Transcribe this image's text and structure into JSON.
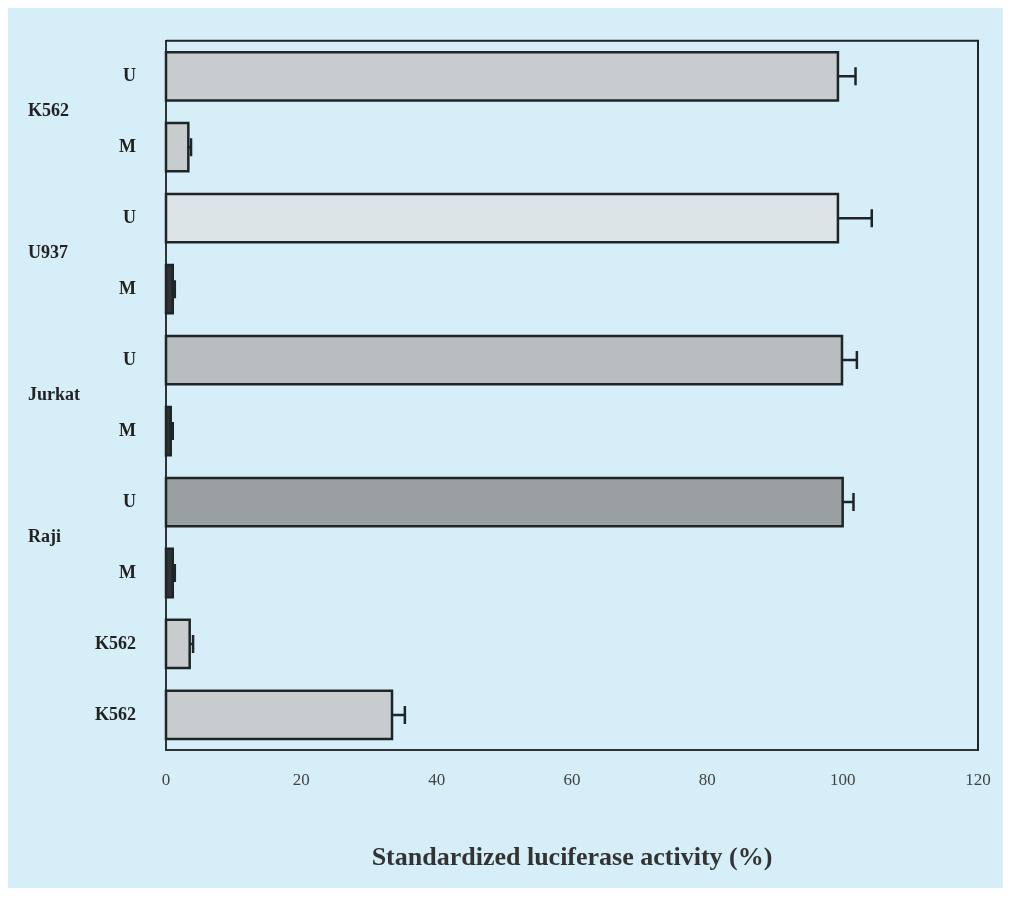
{
  "chart_data": {
    "type": "bar",
    "orientation": "horizontal",
    "xlabel": "Standardized luciferase activity (%)",
    "categories": [
      "U",
      "M",
      "U",
      "M",
      "U",
      "M",
      "U",
      "M",
      "K562",
      "K562"
    ],
    "values": [
      99.3,
      3.3,
      99.3,
      1.0,
      99.9,
      0.7,
      100,
      1.0,
      3.5,
      33.4
    ],
    "errors": [
      2.6,
      0.4,
      5,
      0.3,
      2.2,
      0.3,
      1.6,
      0.3,
      0.5,
      1.9
    ],
    "colors": [
      "#c8ccce",
      "#c8ccce",
      "#dde4e8",
      "#2e3436",
      "#b8bec0",
      "#2e3436",
      "#9aa0a2",
      "#2e3436",
      "#c8ccce",
      "#c8ccce"
    ],
    "annotations": [
      "K562",
      "U937",
      "Jurkat",
      "Raji"
    ],
    "xlim": [
      0,
      120
    ],
    "xticks": [
      0,
      20,
      40,
      60,
      80,
      100,
      120
    ],
    "grid": false,
    "legend": false
  }
}
